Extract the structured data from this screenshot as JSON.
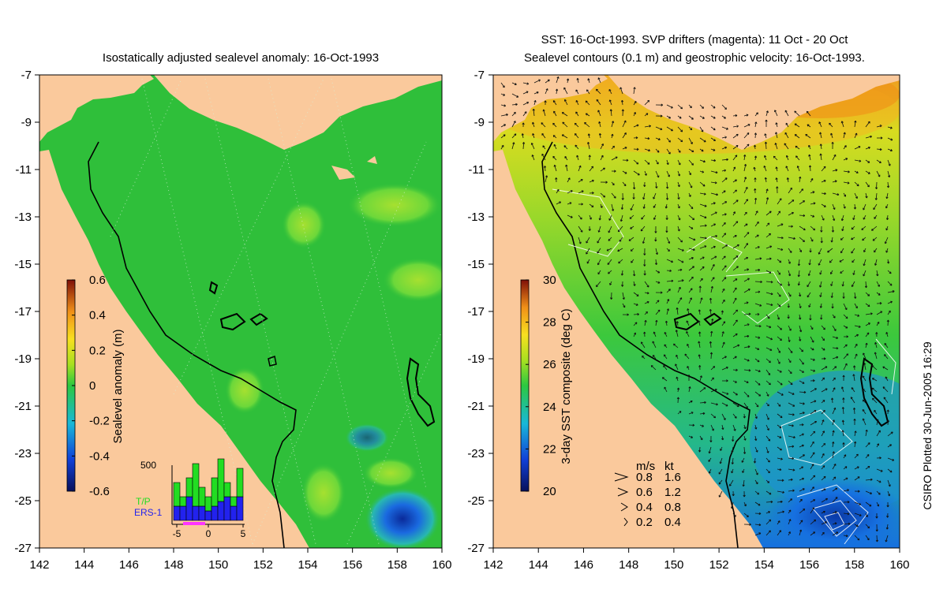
{
  "left_panel": {
    "title": "Isostatically adjusted sealevel anomaly: 16-Oct-1993",
    "colorbar": {
      "label": "Sealevel anomaly (m)",
      "ticks": [
        "0.6",
        "0.4",
        "0.2",
        "0",
        "-0.2",
        "-0.4",
        "-0.6"
      ],
      "range": [
        -0.6,
        0.6
      ]
    },
    "inset": {
      "top_label": "500",
      "tp_label": "T/P",
      "ers_label": "ERS-1",
      "x_ticks": [
        "-5",
        "0",
        "5"
      ],
      "bars": [
        {
          "day": -5,
          "tp": 250,
          "ers": 150
        },
        {
          "day": -4,
          "tp": 100,
          "ers": 150
        },
        {
          "day": -3,
          "tp": 200,
          "ers": 250
        },
        {
          "day": -2,
          "tp": 450,
          "ers": 150
        },
        {
          "day": -1,
          "tp": 200,
          "ers": 150
        },
        {
          "day": 0,
          "tp": 150,
          "ers": 100
        },
        {
          "day": 1,
          "tp": 300,
          "ers": 150
        },
        {
          "day": 2,
          "tp": 450,
          "ers": 200
        },
        {
          "day": 3,
          "tp": 150,
          "ers": 250
        },
        {
          "day": 4,
          "tp": 100,
          "ers": 150
        },
        {
          "day": 5,
          "tp": 300,
          "ers": 250
        }
      ],
      "colors": {
        "tp": "#22dd22",
        "ers": "#2222ee",
        "marker": "#ff33ff"
      }
    }
  },
  "right_panel": {
    "title_line1": "SST: 16-Oct-1993. SVP drifters (magenta): 11 Oct - 20 Oct",
    "title_line2": "Sealevel contours (0.1 m) and geostrophic velocity: 16-Oct-1993.",
    "colorbar": {
      "label": "3-day SST composite (deg C)",
      "ticks": [
        "30",
        "28",
        "26",
        "24",
        "22",
        "20"
      ],
      "range": [
        20,
        30
      ]
    },
    "velocity_legend": {
      "header_ms": "m/s",
      "header_kt": "kt",
      "rows": [
        {
          "ms": "0.8",
          "kt": "1.6"
        },
        {
          "ms": "0.6",
          "kt": "1.2"
        },
        {
          "ms": "0.4",
          "kt": "0.8"
        },
        {
          "ms": "0.2",
          "kt": "0.4"
        }
      ]
    }
  },
  "axes": {
    "lat_ticks": [
      "-7",
      "-9",
      "-11",
      "-13",
      "-15",
      "-17",
      "-19",
      "-21",
      "-23",
      "-25",
      "-27"
    ],
    "lon_ticks": [
      "142",
      "144",
      "146",
      "148",
      "150",
      "152",
      "154",
      "156",
      "158",
      "160"
    ],
    "lat_range": [
      -27,
      -7
    ],
    "lon_range": [
      142,
      160
    ]
  },
  "credit": "CSIRO Plotted 30-Jun-2005 16:29",
  "colors": {
    "land": "#fac99c",
    "ocean_sla": "#2fbf3a",
    "sst_orange": "#f0a020",
    "sst_yellow": "#f7e81a",
    "sst_green": "#3cc83c",
    "sst_blue": "#1670e0"
  }
}
